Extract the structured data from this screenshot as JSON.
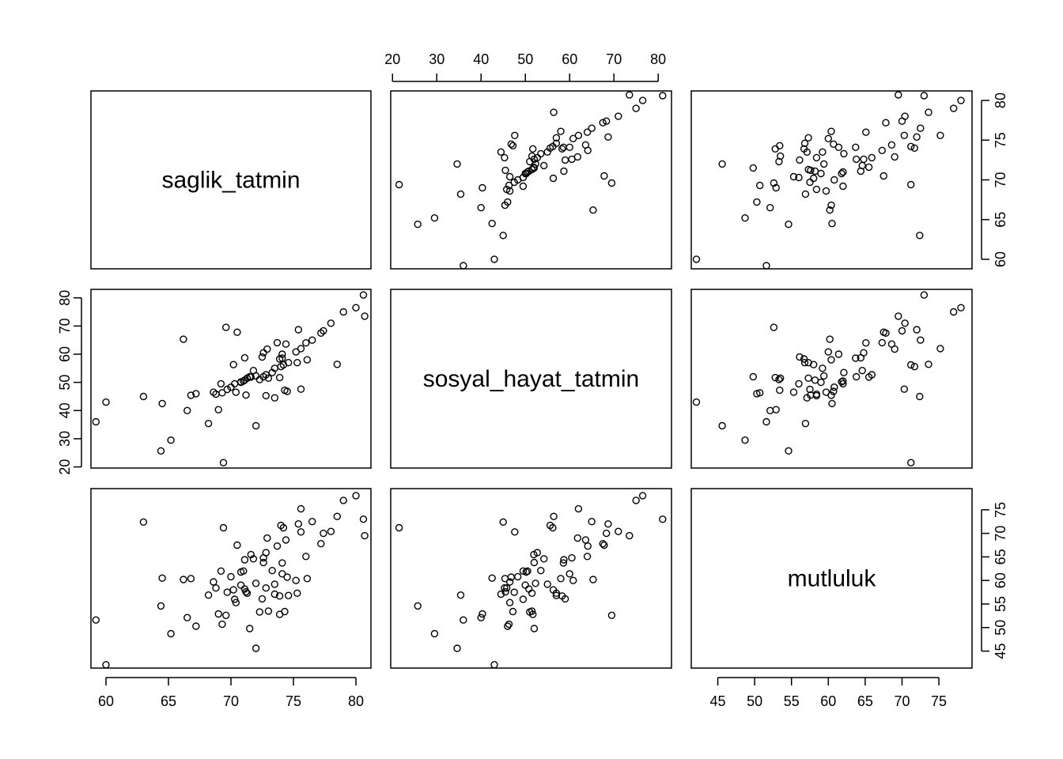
{
  "chart_data": {
    "type": "scatter",
    "layout": "scatterplot-matrix",
    "variables": [
      {
        "name": "saglik_tatmin",
        "range": [
          58.8,
          81.2
        ],
        "ticks": [
          60,
          65,
          70,
          75,
          80
        ]
      },
      {
        "name": "sosyal_hayat_tatmin",
        "range": [
          19.6,
          83
        ],
        "ticks": [
          20,
          30,
          40,
          50,
          60,
          70,
          80
        ]
      },
      {
        "name": "mutluluk",
        "range": [
          41.4,
          79.5
        ],
        "ticks": [
          45,
          50,
          55,
          60,
          65,
          70,
          75
        ]
      }
    ],
    "axes": {
      "top_ticks_variable": 1,
      "right_ticks_variable": 0,
      "left_ticks_variable": 1,
      "right_bottom_ticks_variable": 2,
      "bottom_ticks_variables": [
        0,
        2
      ]
    },
    "columns": {
      "saglik_tatmin": [
        69.4,
        64.4,
        65.2,
        59.2,
        68.2,
        72,
        66.5,
        69,
        64.5,
        63,
        60,
        66.8,
        68.8,
        68.6,
        69.3,
        69.7,
        70,
        70.3,
        70.8,
        71,
        71.1,
        71.3,
        71.5,
        72,
        72.3,
        72.6,
        72.8,
        73,
        73.3,
        73.5,
        74,
        74.2,
        74.6,
        73.9,
        74.1,
        72.5,
        75.2,
        75.6,
        76,
        76.5,
        77.2,
        77.4,
        78,
        79,
        80,
        80.6,
        75.3,
        76.1,
        74.1,
        72.6,
        71.1,
        70.2,
        67.2,
        69.2,
        70.4,
        71.2,
        72.8,
        73.5,
        74.5,
        75.6,
        78.5,
        80.7,
        70.8,
        73.9,
        74.3,
        71.8,
        71.6,
        72.9,
        73.7,
        74.4,
        75.4,
        66.2,
        69.6,
        70.5
      ],
      "sosyal_hayat_tatmin": [
        21.5,
        25.7,
        29.5,
        36,
        35.4,
        34.6,
        40,
        40.3,
        42.5,
        45,
        43,
        45.4,
        45.8,
        46.5,
        46.3,
        47.5,
        48.3,
        49.5,
        50,
        50.5,
        50.8,
        51.5,
        52,
        52.3,
        51,
        52,
        52.7,
        51.5,
        53.5,
        55,
        55.6,
        56.2,
        57,
        58.3,
        58.6,
        59,
        60.8,
        62,
        64,
        65,
        67.5,
        68.3,
        71,
        75,
        76.5,
        81,
        57,
        58,
        60,
        60.5,
        58.7,
        56.3,
        46,
        49.5,
        46.5,
        45.5,
        45.3,
        44.5,
        46.8,
        47.6,
        56.4,
        73.5,
        50.2,
        51.7,
        47.2,
        54.2,
        51.9,
        61.8,
        64.1,
        63.6,
        68.7,
        65.3,
        69.5,
        67.8
      ],
      "mutluluk": [
        71.2,
        54.6,
        48.7,
        51.6,
        56.9,
        45.6,
        52.1,
        52.9,
        60.5,
        72.4,
        42.1,
        60.4,
        58.4,
        59.7,
        50.7,
        57.5,
        60.8,
        56,
        59,
        62,
        58.2,
        57.3,
        49.8,
        59.4,
        53.3,
        63.8,
        65.9,
        53.5,
        62.1,
        59.2,
        71.7,
        71.2,
        56.8,
        56.7,
        63.7,
        56.1,
        60,
        75.2,
        65.1,
        72.5,
        67.8,
        70,
        70.4,
        77,
        78,
        73,
        57.3,
        60.4,
        61.4,
        64.8,
        64.4,
        58,
        50.3,
        62,
        55.3,
        57.6,
        58.4,
        57.1,
        60.7,
        70.3,
        73.6,
        69.5,
        61.8,
        52.8,
        53.4,
        64.6,
        65.5,
        69,
        67.3,
        68.6,
        72,
        60.2,
        52.6,
        67.5
      ]
    }
  }
}
